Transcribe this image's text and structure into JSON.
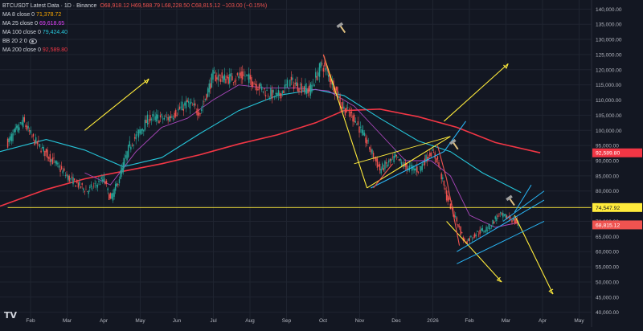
{
  "header": {
    "symbol": "BTCUSDT Latest Data · 1D · Binance",
    "ohlc": "O68,918.12 H69,588.79 L68,228.50 C68,815.12 −103.00 (−0.15%)"
  },
  "indicators": [
    {
      "label": "MA 8 close 0",
      "value": "71,378.72",
      "color": "#f7a600"
    },
    {
      "label": "MA 25 close 0",
      "value": "69,618.65",
      "color": "#e040fb"
    },
    {
      "label": "MA 100 close 0",
      "value": "79,424.40",
      "color": "#26c6da"
    },
    {
      "label": "BB 20 2 0",
      "value": "",
      "color": "#787b86"
    },
    {
      "label": "MA 200 close 0",
      "value": "92,589.80",
      "color": "#f23645"
    }
  ],
  "colors": {
    "up": "#26a69a",
    "down": "#ef5350",
    "grid": "#1f2430",
    "yellow": "#ffeb3b",
    "ma200": "#f23645",
    "ma100": "#26c6da",
    "ma25": "#ab47bc",
    "channel": "#29b6f6"
  },
  "chart_data": {
    "type": "line",
    "title": "BTCUSDT Latest Data · 1D · Binance",
    "x_ticks": [
      "Feb",
      "Mar",
      "Apr",
      "May",
      "Jun",
      "Jul",
      "Aug",
      "Sep",
      "Oct",
      "Nov",
      "Dec",
      "2026",
      "Feb",
      "Mar",
      "Apr",
      "May"
    ],
    "y_ticks": [
      "140,000.00",
      "135,000.00",
      "130,000.00",
      "125,000.00",
      "120,000.00",
      "115,000.00",
      "110,000.00",
      "105,000.00",
      "100,000.00",
      "95,000.00",
      "90,000.00",
      "85,000.00",
      "80,000.00",
      "75,000.00",
      "70,000.00",
      "65,000.00",
      "60,000.00",
      "55,000.00",
      "50,000.00",
      "45,000.00",
      "40,000.00"
    ],
    "ylim": [
      37000,
      143000
    ],
    "x_range_days": [
      -6,
      455
    ],
    "price_path": [
      [
        0,
        96000
      ],
      [
        12,
        103000
      ],
      [
        20,
        97000
      ],
      [
        35,
        90000
      ],
      [
        48,
        84000
      ],
      [
        62,
        80000
      ],
      [
        75,
        84000
      ],
      [
        80,
        77000
      ],
      [
        85,
        82000
      ],
      [
        95,
        95000
      ],
      [
        110,
        104000
      ],
      [
        125,
        104000
      ],
      [
        140,
        109000
      ],
      [
        150,
        106000
      ],
      [
        160,
        118000
      ],
      [
        170,
        117000
      ],
      [
        185,
        118000
      ],
      [
        200,
        113000
      ],
      [
        210,
        111000
      ],
      [
        220,
        116000
      ],
      [
        235,
        113000
      ],
      [
        245,
        122000
      ],
      [
        255,
        114000
      ],
      [
        260,
        108000
      ],
      [
        270,
        104000
      ],
      [
        280,
        96000
      ],
      [
        290,
        87000
      ],
      [
        302,
        91000
      ],
      [
        310,
        88000
      ],
      [
        320,
        87000
      ],
      [
        330,
        93000
      ],
      [
        335,
        90000
      ],
      [
        342,
        78000
      ],
      [
        350,
        70000
      ],
      [
        356,
        63000
      ],
      [
        365,
        66000
      ],
      [
        375,
        68000
      ],
      [
        382,
        72000
      ],
      [
        392,
        71000
      ],
      [
        398,
        68815
      ]
    ],
    "series": [
      {
        "values": [
          [
            -6,
            75000
          ],
          [
            30,
            80500
          ],
          [
            60,
            84000
          ],
          [
            90,
            86500
          ],
          [
            120,
            89000
          ],
          [
            150,
            92000
          ],
          [
            180,
            95500
          ],
          [
            210,
            98500
          ],
          [
            240,
            102500
          ],
          [
            262,
            106500
          ],
          [
            290,
            107000
          ],
          [
            320,
            104500
          ],
          [
            350,
            101000
          ],
          [
            380,
            96000
          ],
          [
            415,
            92600
          ]
        ]
      },
      {
        "values": [
          [
            -6,
            93000
          ],
          [
            30,
            97000
          ],
          [
            60,
            93500
          ],
          [
            90,
            88000
          ],
          [
            120,
            91000
          ],
          [
            150,
            99000
          ],
          [
            180,
            106500
          ],
          [
            210,
            111500
          ],
          [
            240,
            113500
          ],
          [
            262,
            111500
          ],
          [
            290,
            104000
          ],
          [
            320,
            96500
          ],
          [
            345,
            93000
          ],
          [
            370,
            86000
          ],
          [
            400,
            79500
          ]
        ]
      },
      {
        "values": [
          [
            60,
            86000
          ],
          [
            80,
            82000
          ],
          [
            100,
            93000
          ],
          [
            120,
            101000
          ],
          [
            140,
            104000
          ],
          [
            160,
            110000
          ],
          [
            180,
            115000
          ],
          [
            200,
            114000
          ],
          [
            225,
            114000
          ],
          [
            250,
            113000
          ],
          [
            270,
            108000
          ],
          [
            290,
            99000
          ],
          [
            310,
            90000
          ],
          [
            330,
            90000
          ],
          [
            345,
            85000
          ],
          [
            360,
            72000
          ],
          [
            380,
            68000
          ],
          [
            398,
            69600
          ]
        ]
      }
    ],
    "horizontal_levels": [
      {
        "value": 74547.92,
        "label": "74,547.92"
      }
    ],
    "price_labels": [
      {
        "value": 92589.8,
        "label": "92,589.80",
        "color": "#f23645"
      },
      {
        "value": 74547.92,
        "label": "74,547.92",
        "color": "#ffeb3b"
      },
      {
        "value": 68815.12,
        "label": "68,815.12",
        "color": "#ef5350"
      }
    ],
    "grid": true,
    "legend": "top-left"
  },
  "branding": {
    "logo": "TV"
  }
}
